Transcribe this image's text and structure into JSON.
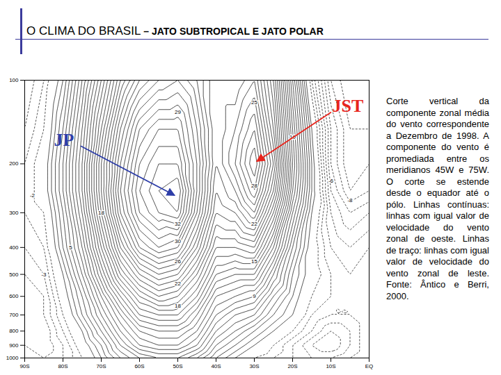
{
  "chart_data": {
    "type": "contour",
    "title": "O CLIMA DO BRASIL – JATO SUBTROPICAL E JATO POLAR",
    "caption": "Corte vertical da componente zonal média do vento correspondente a Dezembro de 1998. A componente do vento é promediada entre os meridianos 45W e 75W. O corte se estende desde o equador até o pólo. Linhas contínuas: linhas com igual valor de velocidade do vento zonal de oeste. Linhas de traço: linhas com igual valor de velocidade do vento zonal de leste. Fonte: Ântico e Berri, 2000.",
    "x": [
      -90,
      -85,
      -80,
      -75,
      -70,
      -65,
      -60,
      -55,
      -50,
      -45,
      -40,
      -35,
      -30,
      -25,
      -20,
      -15,
      -10,
      -5,
      0
    ],
    "y": [
      1000,
      900,
      800,
      700,
      600,
      500,
      400,
      300,
      250,
      200,
      150,
      100
    ],
    "values": [
      [
        -3,
        -4,
        -3,
        -1,
        2,
        5,
        7,
        8,
        8,
        6,
        3,
        1,
        -1,
        -2,
        -3,
        -4,
        -4,
        -3,
        -2
      ],
      [
        -4,
        -5,
        -3,
        0,
        3,
        7,
        10,
        11,
        11,
        9,
        5,
        3,
        1,
        -1,
        -3,
        -5,
        -6,
        -4,
        -2
      ],
      [
        -5,
        -5,
        -2,
        1,
        5,
        9,
        12,
        13,
        13,
        11,
        7,
        5,
        3,
        1,
        -1,
        -3,
        -5,
        -4,
        -2
      ],
      [
        -5,
        -4,
        -1,
        3,
        7,
        11,
        15,
        16,
        16,
        13,
        9,
        7,
        6,
        3,
        1,
        -2,
        -3,
        -3,
        -2
      ],
      [
        -5,
        -4,
        0,
        4,
        9,
        14,
        18,
        20,
        19,
        16,
        11,
        10,
        9,
        5,
        2,
        -1,
        -2,
        -3,
        -2
      ],
      [
        -4,
        -3,
        1,
        6,
        12,
        18,
        22,
        24,
        23,
        19,
        14,
        13,
        13,
        8,
        3,
        0,
        -2,
        -3,
        -2
      ],
      [
        -3,
        -2,
        3,
        8,
        15,
        22,
        27,
        29,
        28,
        23,
        17,
        17,
        18,
        12,
        5,
        0,
        -3,
        -4,
        -3
      ],
      [
        -2,
        -1,
        4,
        10,
        18,
        26,
        31,
        33,
        34,
        27,
        20,
        21,
        24,
        17,
        8,
        1,
        -4,
        -6,
        -5
      ],
      [
        -2,
        0,
        5,
        11,
        19,
        27,
        32,
        34,
        35,
        28,
        21,
        23,
        27,
        20,
        10,
        2,
        -5,
        -8,
        -7
      ],
      [
        -2,
        0,
        5,
        11,
        19,
        26,
        31,
        33,
        33,
        28,
        22,
        25,
        29,
        22,
        11,
        2,
        -6,
        -9,
        -8
      ],
      [
        -3,
        -1,
        4,
        10,
        17,
        24,
        29,
        31,
        31,
        27,
        22,
        24,
        27,
        20,
        10,
        1,
        -6,
        -9,
        -9
      ],
      [
        -4,
        -2,
        2,
        8,
        14,
        20,
        24,
        26,
        27,
        25,
        22,
        22,
        24,
        18,
        8,
        -2,
        -8,
        -10,
        -10
      ]
    ],
    "levels": [
      -10,
      -9,
      -8,
      -7,
      -6,
      -5,
      -4,
      -3,
      -2,
      -1,
      1,
      2,
      3,
      4,
      5,
      6,
      7,
      8,
      9,
      10,
      11,
      12,
      13,
      14,
      15,
      16,
      17,
      18,
      19,
      20,
      21,
      22,
      23,
      24,
      25,
      26,
      27,
      28,
      29,
      30,
      31,
      32,
      33,
      34
    ],
    "color": "#000000",
    "contour_labels": [
      {
        "x": -50,
        "y": 130,
        "value": 29
      },
      {
        "x": -50,
        "y": 330,
        "value": 32
      },
      {
        "x": -50,
        "y": 380,
        "value": 30
      },
      {
        "x": -50,
        "y": 450,
        "value": 26
      },
      {
        "x": -50,
        "y": 540,
        "value": 22
      },
      {
        "x": -50,
        "y": 650,
        "value": 18
      },
      {
        "x": -30,
        "y": 120,
        "value": 25
      },
      {
        "x": -30,
        "y": 240,
        "value": 28
      },
      {
        "x": -30,
        "y": 330,
        "value": 22
      },
      {
        "x": -30,
        "y": 450,
        "value": 15
      },
      {
        "x": -30,
        "y": 600,
        "value": 9
      },
      {
        "x": -88,
        "y": 260,
        "value": -2
      },
      {
        "x": -85,
        "y": 500,
        "value": -3
      },
      {
        "x": -78,
        "y": 400,
        "value": 5
      },
      {
        "x": -70,
        "y": 300,
        "value": 18
      },
      {
        "x": -20,
        "y": 160,
        "value": 10
      },
      {
        "x": -10,
        "y": 230,
        "value": -6
      },
      {
        "x": -5,
        "y": 270,
        "value": -8
      }
    ],
    "annotations": [
      {
        "text": "JP",
        "x": -50,
        "y": 265,
        "color": "#2e3ea8"
      },
      {
        "text": "JST",
        "x": -30,
        "y": 200,
        "color": "#e8241c"
      }
    ],
    "xlim": [
      -90,
      0
    ],
    "xticks": [
      {
        "value": -90,
        "label": "90S"
      },
      {
        "value": -80,
        "label": "80S"
      },
      {
        "value": -70,
        "label": "70S"
      },
      {
        "value": -60,
        "label": "60S"
      },
      {
        "value": -50,
        "label": "50S"
      },
      {
        "value": -40,
        "label": "40S"
      },
      {
        "value": -30,
        "label": "30S"
      },
      {
        "value": -20,
        "label": "20S"
      },
      {
        "value": -10,
        "label": "10S"
      },
      {
        "value": 0,
        "label": "EQ"
      }
    ],
    "ylim": [
      1000,
      100
    ],
    "yticks": [
      100,
      200,
      300,
      400,
      500,
      600,
      700,
      800,
      900,
      1000
    ],
    "log": "y",
    "grid": false
  }
}
